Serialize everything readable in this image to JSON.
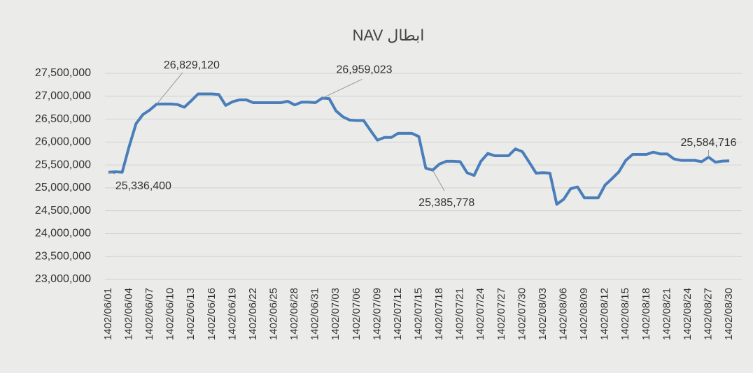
{
  "chart_data": {
    "type": "line",
    "title": "ابطال NAV",
    "categories": [
      "1402/06/01",
      null,
      null,
      "1402/06/04",
      null,
      null,
      "1402/06/07",
      null,
      null,
      "1402/06/10",
      null,
      null,
      "1402/06/13",
      null,
      null,
      "1402/06/16",
      null,
      null,
      "1402/06/19",
      null,
      null,
      "1402/06/22",
      null,
      null,
      "1402/06/25",
      null,
      null,
      "1402/06/28",
      null,
      null,
      "1402/06/31",
      null,
      null,
      "1402/07/03",
      null,
      null,
      "1402/07/06",
      null,
      null,
      "1402/07/09",
      null,
      null,
      "1402/07/12",
      null,
      null,
      "1402/07/15",
      null,
      null,
      "1402/07/18",
      null,
      null,
      "1402/07/21",
      null,
      null,
      "1402/07/24",
      null,
      null,
      "1402/07/27",
      null,
      null,
      "1402/07/30",
      null,
      null,
      "1402/08/03",
      null,
      null,
      "1402/08/06",
      null,
      null,
      "1402/08/09",
      null,
      null,
      "1402/08/12",
      null,
      null,
      "1402/08/15",
      null,
      null,
      "1402/08/18",
      null,
      null,
      "1402/08/21",
      null,
      null,
      "1402/08/24",
      null,
      null,
      "1402/08/27",
      null,
      null,
      "1402/08/30"
    ],
    "series": [
      {
        "color": "#4a7ebb",
        "values": [
          25336400,
          25350000,
          25340000,
          25900000,
          26400000,
          26600000,
          26700000,
          26829120,
          26830000,
          26830000,
          26820000,
          26760000,
          26900000,
          27050000,
          27050000,
          27050000,
          27040000,
          26800000,
          26880000,
          26920000,
          26920000,
          26860000,
          26860000,
          26860000,
          26860000,
          26860000,
          26890000,
          26810000,
          26870000,
          26870000,
          26860000,
          26959023,
          26950000,
          26680000,
          26550000,
          26480000,
          26470000,
          26470000,
          26250000,
          26040000,
          26100000,
          26100000,
          26190000,
          26190000,
          26190000,
          26120000,
          25430000,
          25385778,
          25520000,
          25580000,
          25580000,
          25570000,
          25330000,
          25270000,
          25580000,
          25750000,
          25700000,
          25700000,
          25700000,
          25850000,
          25790000,
          25560000,
          25320000,
          25330000,
          25320000,
          24640000,
          24750000,
          24980000,
          25020000,
          24780000,
          24780000,
          24780000,
          25060000,
          25200000,
          25350000,
          25600000,
          25730000,
          25730000,
          25730000,
          25780000,
          25740000,
          25740000,
          25630000,
          25600000,
          25600000,
          25600000,
          25570000,
          25670000,
          25560000,
          25584716,
          25590000
        ],
        "value_labels": [
          "25,336,400",
          null,
          null,
          null,
          null,
          null,
          null,
          "26,829,120",
          null,
          null,
          null,
          null,
          null,
          null,
          null,
          null,
          null,
          null,
          null,
          null,
          null,
          null,
          null,
          null,
          null,
          null,
          null,
          null,
          null,
          null,
          null,
          "26,959,023",
          null,
          null,
          null,
          null,
          null,
          null,
          null,
          null,
          null,
          null,
          null,
          null,
          null,
          null,
          null,
          "25,385,778",
          null,
          null,
          null,
          null,
          null,
          null,
          null,
          null,
          null,
          null,
          null,
          null,
          null,
          null,
          null,
          null,
          null,
          null,
          null,
          null,
          null,
          null,
          null,
          null,
          null,
          null,
          null,
          null,
          null,
          null,
          null,
          null,
          null,
          null,
          null,
          null,
          null,
          null,
          null,
          "25,584,716",
          null
        ]
      }
    ],
    "ylim": [
      23000000,
      27500000
    ],
    "yticks": [
      {
        "value": 23000000,
        "label": "23,000,000"
      },
      {
        "value": 23500000,
        "label": "23,500,000"
      },
      {
        "value": 24000000,
        "label": "24,000,000"
      },
      {
        "value": 24500000,
        "label": "24,500,000"
      },
      {
        "value": 25000000,
        "label": "25,000,000"
      },
      {
        "value": 25500000,
        "label": "25,500,000"
      },
      {
        "value": 26000000,
        "label": "26,000,000"
      },
      {
        "value": 26500000,
        "label": "26,500,000"
      },
      {
        "value": 27000000,
        "label": "27,000,000"
      },
      {
        "value": 27500000,
        "label": "27,500,000"
      }
    ],
    "grid": true
  }
}
